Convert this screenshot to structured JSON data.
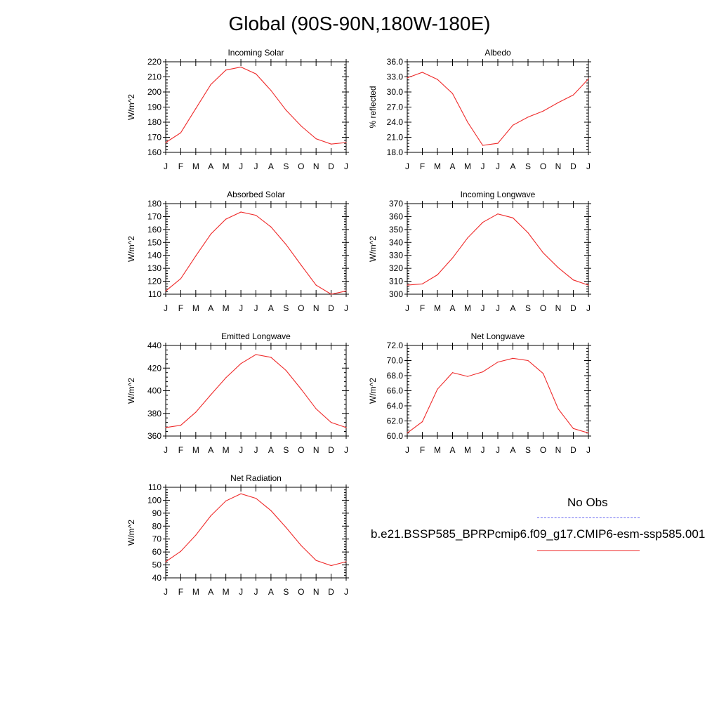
{
  "title": "Global (90S-90N,180W-180E)",
  "legend": {
    "obs_label": "No Obs",
    "model_label": "b.e21.BSSP585_BPRPcmip6.f09_g17.CMIP6-esm-ssp585.001",
    "obs_color": "#6b6bf0",
    "model_color": "#ef2b2b"
  },
  "chart_data": [
    {
      "type": "line",
      "title": "Incoming Solar",
      "ylabel": "W/m^2",
      "categories": [
        "J",
        "F",
        "M",
        "A",
        "M",
        "J",
        "J",
        "A",
        "S",
        "O",
        "N",
        "D",
        "J"
      ],
      "ylim": [
        160,
        220
      ],
      "yticks": [
        160,
        170,
        180,
        190,
        200,
        210,
        220
      ],
      "ytick_labels": [
        "160",
        "170",
        "180",
        "190",
        "200",
        "210",
        "220"
      ],
      "series": [
        {
          "values": [
            166.5,
            173,
            189,
            205,
            214.5,
            216.5,
            212,
            201,
            188,
            177.5,
            169,
            165.5,
            166.5
          ],
          "color": "#ef2b2b"
        }
      ]
    },
    {
      "type": "line",
      "title": "Albedo",
      "ylabel": "% reflected",
      "categories": [
        "J",
        "F",
        "M",
        "A",
        "M",
        "J",
        "J",
        "A",
        "S",
        "O",
        "N",
        "D",
        "J"
      ],
      "ylim": [
        18,
        36
      ],
      "yticks": [
        18,
        21,
        24,
        27,
        30,
        33,
        36
      ],
      "ytick_labels": [
        "18.0",
        "21.0",
        "24.0",
        "27.0",
        "30.0",
        "33.0",
        "36.0"
      ],
      "series": [
        {
          "values": [
            32.8,
            33.9,
            32.5,
            29.7,
            24.0,
            19.4,
            19.8,
            23.4,
            25.0,
            26.2,
            27.9,
            29.4,
            32.6
          ],
          "color": "#ef2b2b"
        }
      ]
    },
    {
      "type": "line",
      "title": "Absorbed Solar",
      "ylabel": "W/m^2",
      "categories": [
        "J",
        "F",
        "M",
        "A",
        "M",
        "J",
        "J",
        "A",
        "S",
        "O",
        "N",
        "D",
        "J"
      ],
      "ylim": [
        110,
        180
      ],
      "yticks": [
        110,
        120,
        130,
        140,
        150,
        160,
        170,
        180
      ],
      "ytick_labels": [
        "110",
        "120",
        "130",
        "140",
        "150",
        "160",
        "170",
        "180"
      ],
      "series": [
        {
          "values": [
            112.5,
            122,
            139.5,
            156.5,
            168,
            173.5,
            171,
            162,
            148.5,
            132.5,
            117,
            110,
            112.5
          ],
          "color": "#ef2b2b"
        }
      ]
    },
    {
      "type": "line",
      "title": "Incoming Longwave",
      "ylabel": "W/m^2",
      "categories": [
        "J",
        "F",
        "M",
        "A",
        "M",
        "J",
        "J",
        "A",
        "S",
        "O",
        "N",
        "D",
        "J"
      ],
      "ylim": [
        300,
        370
      ],
      "yticks": [
        300,
        310,
        320,
        330,
        340,
        350,
        360,
        370
      ],
      "ytick_labels": [
        "300",
        "310",
        "320",
        "330",
        "340",
        "350",
        "360",
        "370"
      ],
      "series": [
        {
          "values": [
            307,
            308,
            315,
            328,
            343.5,
            355.5,
            362,
            359,
            347.5,
            332,
            320.5,
            311,
            307
          ],
          "color": "#ef2b2b"
        }
      ]
    },
    {
      "type": "line",
      "title": "Emitted Longwave",
      "ylabel": "W/m^2",
      "categories": [
        "J",
        "F",
        "M",
        "A",
        "M",
        "J",
        "J",
        "A",
        "S",
        "O",
        "N",
        "D",
        "J"
      ],
      "ylim": [
        360,
        440
      ],
      "yticks": [
        360,
        380,
        400,
        420,
        440
      ],
      "ytick_labels": [
        "360",
        "380",
        "400",
        "420",
        "440"
      ],
      "series": [
        {
          "values": [
            367.5,
            369.5,
            381,
            396.5,
            411.5,
            424,
            432,
            429.5,
            418,
            401.5,
            384,
            372,
            367.5
          ],
          "color": "#ef2b2b"
        }
      ]
    },
    {
      "type": "line",
      "title": "Net Longwave",
      "ylabel": "W/m^2",
      "categories": [
        "J",
        "F",
        "M",
        "A",
        "M",
        "J",
        "J",
        "A",
        "S",
        "O",
        "N",
        "D",
        "J"
      ],
      "ylim": [
        60,
        72
      ],
      "yticks": [
        60,
        62,
        64,
        66,
        68,
        70,
        72
      ],
      "ytick_labels": [
        "60.0",
        "62.0",
        "64.0",
        "66.0",
        "68.0",
        "70.0",
        "72.0"
      ],
      "series": [
        {
          "values": [
            60.4,
            61.9,
            66.2,
            68.4,
            67.9,
            68.5,
            69.8,
            70.3,
            70.0,
            68.3,
            63.6,
            61.0,
            60.4
          ],
          "color": "#ef2b2b"
        }
      ]
    },
    {
      "type": "line",
      "title": "Net Radiation",
      "ylabel": "W/m^2",
      "categories": [
        "J",
        "F",
        "M",
        "A",
        "M",
        "J",
        "J",
        "A",
        "S",
        "O",
        "N",
        "D",
        "J"
      ],
      "ylim": [
        40,
        110
      ],
      "yticks": [
        40,
        50,
        60,
        70,
        80,
        90,
        100,
        110
      ],
      "ytick_labels": [
        "40",
        "50",
        "60",
        "70",
        "80",
        "90",
        "100",
        "110"
      ],
      "series": [
        {
          "values": [
            52.5,
            60.5,
            73,
            88,
            99.5,
            105,
            101.5,
            92,
            79,
            65,
            53.5,
            49.5,
            52.5
          ],
          "color": "#ef2b2b"
        }
      ]
    }
  ]
}
